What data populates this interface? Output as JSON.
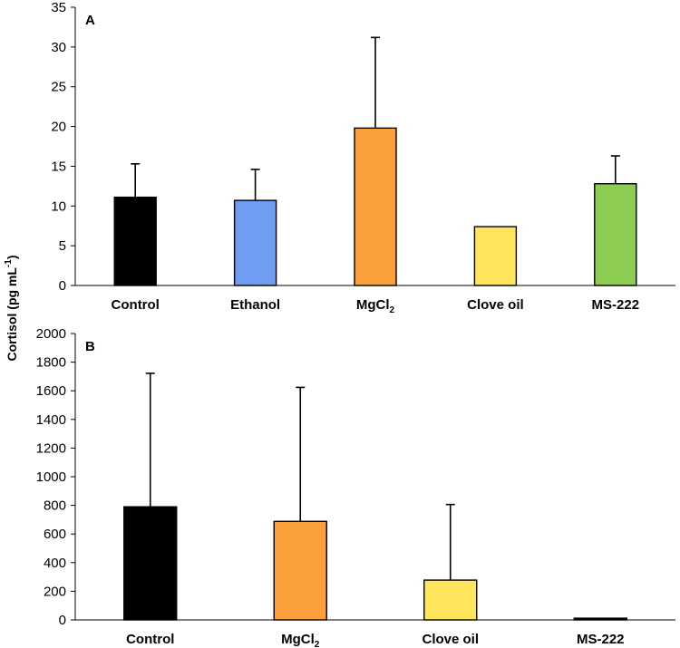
{
  "ylabel": {
    "main": "Cortisol (pg mL",
    "superscript": "-1",
    "closing": ")"
  },
  "chart_data": [
    {
      "type": "bar",
      "panel_label": "A",
      "categories": [
        {
          "main": "Control",
          "sub": ""
        },
        {
          "main": "Ethanol",
          "sub": ""
        },
        {
          "main": "MgCl",
          "sub": "2"
        },
        {
          "main": "Clove oil",
          "sub": ""
        },
        {
          "main": "MS-222",
          "sub": ""
        }
      ],
      "values": [
        11.1,
        10.7,
        19.8,
        7.4,
        12.8
      ],
      "errors": [
        4.2,
        3.9,
        11.4,
        0,
        3.5
      ],
      "colors": [
        "#000000",
        "#6f9df1",
        "#fb9f3a",
        "#ffe45c",
        "#8ccc52"
      ],
      "ylim": [
        0,
        35
      ],
      "yticks": [
        0,
        5,
        10,
        15,
        20,
        25,
        30,
        35
      ],
      "grid": false
    },
    {
      "type": "bar",
      "panel_label": "B",
      "categories": [
        {
          "main": "Control",
          "sub": ""
        },
        {
          "main": "MgCl",
          "sub": "2"
        },
        {
          "main": "Clove oil",
          "sub": ""
        },
        {
          "main": "MS-222",
          "sub": ""
        }
      ],
      "values": [
        790,
        688,
        278,
        12
      ],
      "errors": [
        932,
        936,
        528,
        0
      ],
      "colors": [
        "#000000",
        "#fb9f3a",
        "#ffe45c",
        "#000000"
      ],
      "ylim": [
        0,
        2000
      ],
      "yticks": [
        0,
        200,
        400,
        600,
        800,
        1000,
        1200,
        1400,
        1600,
        1800,
        2000
      ],
      "grid": false
    }
  ]
}
